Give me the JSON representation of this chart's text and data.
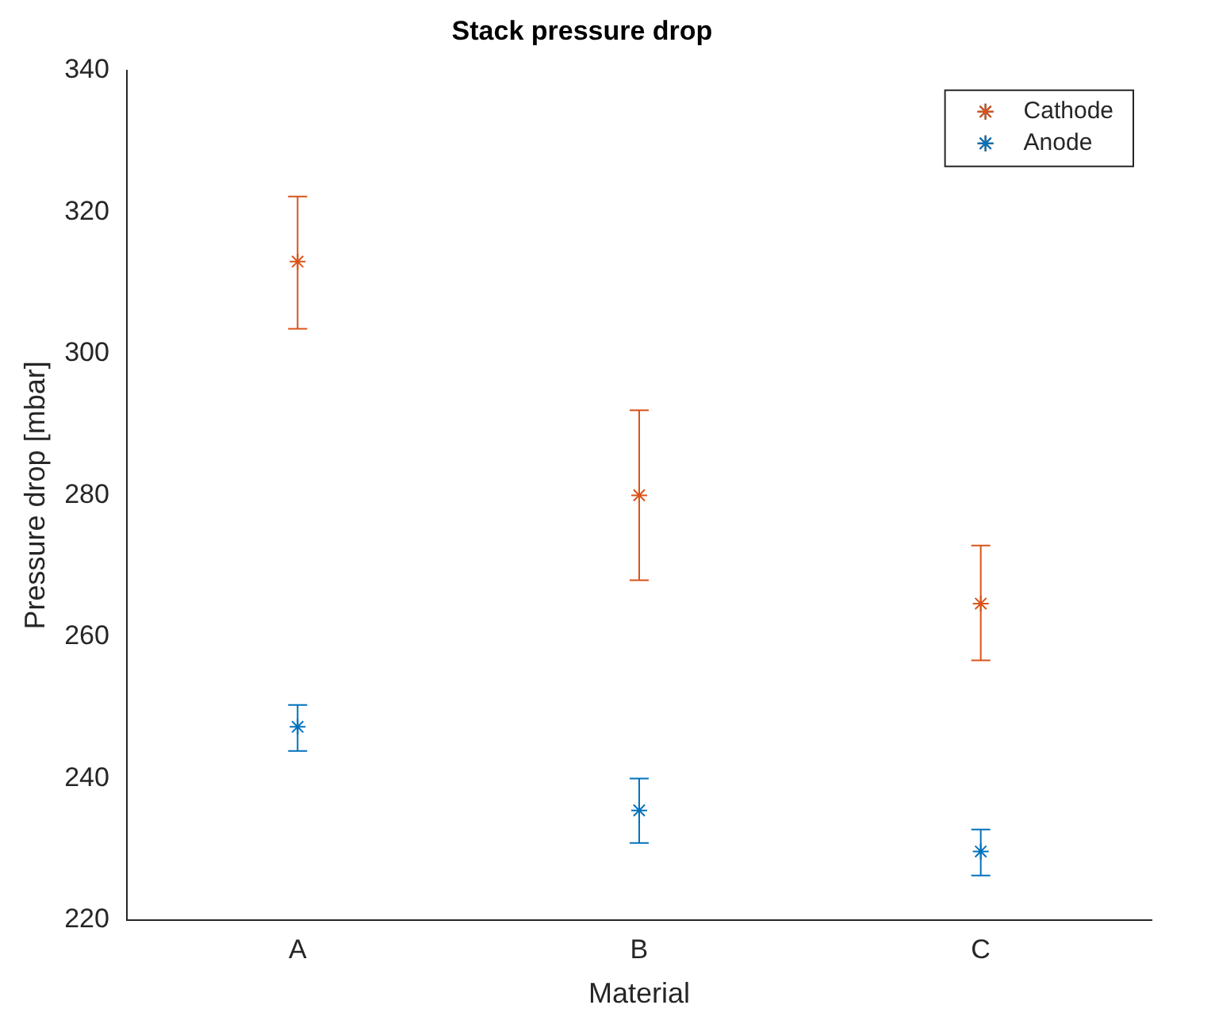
{
  "chart_data": {
    "type": "scatter",
    "title": "Stack pressure drop",
    "xlabel": "Material",
    "ylabel": "Pressure drop [mbar]",
    "categories": [
      "A",
      "B",
      "C"
    ],
    "series": [
      {
        "name": "Cathode",
        "color": "#d95319",
        "values": [
          313,
          280,
          264.7
        ],
        "errors": [
          [
            303.5,
            322.2
          ],
          12,
          [
            256.7,
            272.9
          ]
        ]
      },
      {
        "name": "Anode",
        "color": "#0072bd",
        "values": [
          247.3,
          235.5,
          229.7
        ],
        "errors": [
          [
            243.9,
            250.4
          ],
          [
            230.9,
            240
          ],
          [
            226.3,
            232.8
          ]
        ]
      }
    ],
    "ylim": [
      220,
      340
    ],
    "yticks": [
      220,
      240,
      260,
      280,
      300,
      320,
      340
    ],
    "grid": false,
    "legend": "top right",
    "marker": "cross"
  }
}
